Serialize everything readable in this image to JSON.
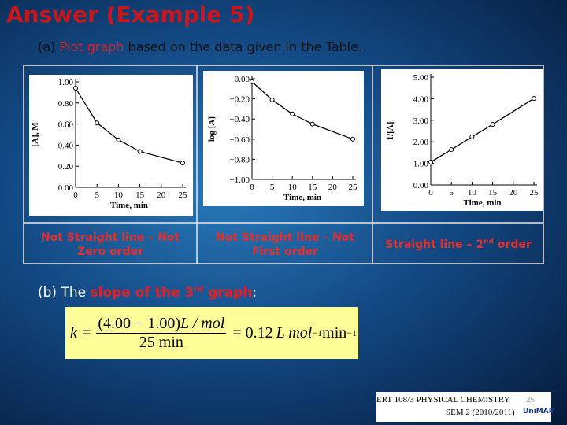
{
  "header": {
    "title": "Answer (Example 5)"
  },
  "part_a": {
    "prefix": "(a) ",
    "highlight": "Plot graph",
    "rest": " based on the data given in the Table."
  },
  "chart_data": [
    {
      "type": "line",
      "x_label": "Time, min",
      "y_label": "[A], M",
      "x": [
        0,
        5,
        10,
        15,
        25
      ],
      "values": [
        0.94,
        0.61,
        0.45,
        0.34,
        0.23
      ],
      "color": "#000000",
      "xlim": [
        0,
        25
      ],
      "xticks": [
        0,
        5,
        10,
        15,
        20,
        25
      ],
      "ylim": [
        0,
        1
      ],
      "yticks": [
        {
          "value": 0,
          "label": "0.00"
        },
        {
          "value": 0.2,
          "label": "0.20"
        },
        {
          "value": 0.4,
          "label": "0.40"
        },
        {
          "value": 0.6,
          "label": "0.60"
        },
        {
          "value": 0.8,
          "label": "0.80"
        },
        {
          "value": 1,
          "label": "1.00"
        }
      ]
    },
    {
      "type": "line",
      "x_label": "Time, min",
      "y_label": "log [A]",
      "x": [
        0,
        5,
        10,
        15,
        25
      ],
      "values": [
        -0.03,
        -0.21,
        -0.35,
        -0.45,
        -0.6
      ],
      "color": "#000000",
      "xlim": [
        0,
        25
      ],
      "xticks": [
        0,
        5,
        10,
        15,
        20,
        25
      ],
      "ylim": [
        -1,
        0
      ],
      "yticks": [
        {
          "value": 0,
          "label": "0.00"
        },
        {
          "value": -0.2,
          "label": "−0.20"
        },
        {
          "value": -0.4,
          "label": "−0.40"
        },
        {
          "value": -0.6,
          "label": "−0.60"
        },
        {
          "value": -0.8,
          "label": "−0.80"
        },
        {
          "value": -1,
          "label": "−1.00"
        }
      ]
    },
    {
      "type": "line",
      "x_label": "Time, min",
      "y_label": "1/[A]",
      "x": [
        0,
        5,
        10,
        15,
        25
      ],
      "values": [
        1.06,
        1.64,
        2.23,
        2.81,
        4.01
      ],
      "color": "#000000",
      "xlim": [
        0,
        25
      ],
      "xticks": [
        0,
        5,
        10,
        15,
        20,
        25
      ],
      "ylim": [
        0,
        5
      ],
      "yticks": [
        {
          "value": 0,
          "label": "0.00"
        },
        {
          "value": 1,
          "label": "1.00"
        },
        {
          "value": 2,
          "label": "2.00"
        },
        {
          "value": 3,
          "label": "3.00"
        },
        {
          "value": 4,
          "label": "4.00"
        },
        {
          "value": 5,
          "label": "5.00"
        }
      ]
    }
  ],
  "captions": [
    {
      "text": "Not Straight line – Not Zero order"
    },
    {
      "text": "Not Straight line – Not First order"
    },
    {
      "pre": "Straight line – 2",
      "sup": "nd",
      "post": " order"
    }
  ],
  "part_b": {
    "prefix": "(b) The ",
    "highlight": "slope of the 3",
    "sup": "rd",
    "highlight2": " graph",
    "suffix": ":"
  },
  "equation": {
    "lhs": "k =",
    "numerator": "(4.00 − 1.00)",
    "unit": "L / mol",
    "denominator": "25 min",
    "result": "= 0.12",
    "result_unit": "L mol",
    "exp1": "−1",
    "unit2": " min",
    "exp2": "−1"
  },
  "footer": {
    "line1": "ERT 108/3 PHYSICAL CHEMISTRY",
    "page": "25",
    "line2": "SEM 2 (2010/2011)",
    "logo": "UniMAP"
  }
}
